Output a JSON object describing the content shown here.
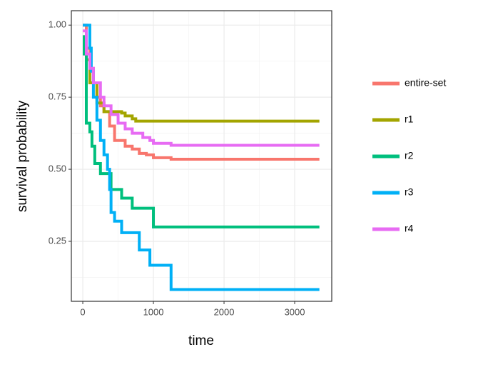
{
  "chart_data": {
    "type": "line",
    "step": "post",
    "x_label": "time",
    "y_label": "survival probability",
    "xlim": [
      -162,
      3525
    ],
    "ylim": [
      0.042,
      1.05
    ],
    "xticks": [
      0,
      1000,
      2000,
      3000
    ],
    "yticks": [
      {
        "value": 0.25,
        "label": "0.25"
      },
      {
        "value": 0.5,
        "label": "0.50"
      },
      {
        "value": 0.75,
        "label": "0.75"
      },
      {
        "value": 1,
        "label": "1.00"
      }
    ],
    "x_minor_ticks": [
      500,
      1500,
      2500
    ],
    "y_minor_ticks": [
      0.125,
      0.375,
      0.625,
      0.875
    ],
    "grid": true,
    "legend": "right",
    "series": [
      {
        "name": "entire-set",
        "color": "#F8766D",
        "x": [
          0,
          50,
          100,
          150,
          200,
          250,
          300,
          380,
          450,
          600,
          700,
          800,
          900,
          1000,
          1250,
          3350
        ],
        "values": [
          1.0,
          0.92,
          0.85,
          0.8,
          0.75,
          0.72,
          0.7,
          0.65,
          0.6,
          0.58,
          0.57,
          0.555,
          0.55,
          0.54,
          0.535,
          0.535
        ]
      },
      {
        "name": "r1",
        "color": "#A3A500",
        "x": [
          0,
          50,
          100,
          200,
          300,
          550,
          600,
          700,
          750,
          3350
        ],
        "values": [
          0.96,
          0.88,
          0.8,
          0.73,
          0.7,
          0.695,
          0.685,
          0.675,
          0.667,
          0.667
        ]
      },
      {
        "name": "r2",
        "color": "#00BF7D",
        "x": [
          0,
          20,
          50,
          100,
          130,
          170,
          250,
          400,
          550,
          700,
          1000,
          3350
        ],
        "values": [
          0.96,
          0.9,
          0.66,
          0.63,
          0.58,
          0.52,
          0.485,
          0.43,
          0.4,
          0.365,
          0.3,
          0.3
        ]
      },
      {
        "name": "r3",
        "color": "#00B0F6",
        "x": [
          0,
          100,
          120,
          150,
          200,
          250,
          300,
          350,
          380,
          400,
          450,
          550,
          800,
          950,
          1250,
          3350
        ],
        "values": [
          1.0,
          0.92,
          0.84,
          0.75,
          0.67,
          0.6,
          0.55,
          0.5,
          0.43,
          0.35,
          0.32,
          0.28,
          0.22,
          0.167,
          0.083,
          0.083
        ]
      },
      {
        "name": "r4",
        "color": "#E76BF3",
        "x": [
          0,
          50,
          100,
          150,
          250,
          300,
          400,
          500,
          600,
          700,
          850,
          950,
          1000,
          1250,
          3350
        ],
        "values": [
          0.98,
          0.9,
          0.85,
          0.8,
          0.75,
          0.72,
          0.69,
          0.66,
          0.64,
          0.625,
          0.61,
          0.6,
          0.59,
          0.583,
          0.583
        ]
      }
    ]
  }
}
